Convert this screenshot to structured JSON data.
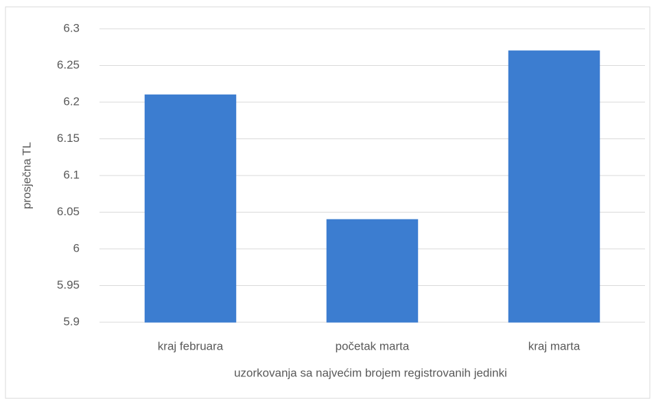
{
  "chart_data": {
    "type": "bar",
    "ylabel": "prosječna TL",
    "xlabel": "uzorkovanja sa najvećim brojem registrovanih jedinki",
    "categories": [
      "kraj februara",
      "početak marta",
      "kraj marta"
    ],
    "values": [
      6.21,
      6.04,
      6.27
    ],
    "color": "#3c7dd0",
    "ylim": [
      5.9,
      6.3
    ],
    "yticks": [
      5.9,
      5.95,
      6,
      6.05,
      6.1,
      6.15,
      6.2,
      6.25,
      6.3
    ],
    "grid": true
  }
}
